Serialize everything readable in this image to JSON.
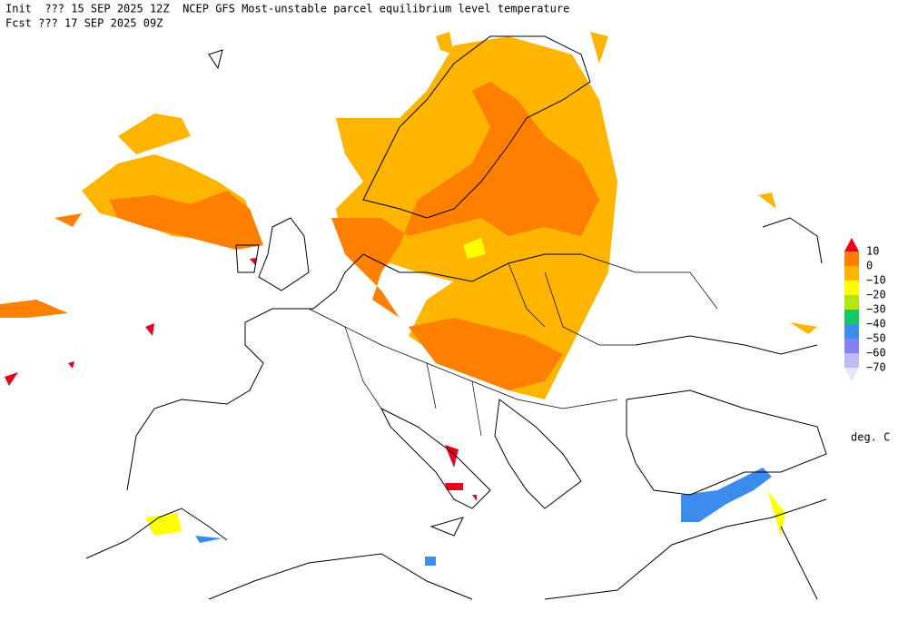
{
  "header": {
    "init": "Init  ??? 15 SEP 2025 12Z  NCEP GFS Most-unstable parcel equilibrium level temperature",
    "fcst": "Fcst ??? 17 SEP 2025 09Z"
  },
  "legend": {
    "labels": [
      "10",
      "0",
      "−10",
      "−20",
      "−30",
      "−40",
      "−50",
      "−60",
      "−70"
    ],
    "colors": [
      "#e8001c",
      "#ff7f00",
      "#ffb400",
      "#ffff00",
      "#b4e614",
      "#14c864",
      "#3c8cf0",
      "#8282f0",
      "#bcbcf5",
      "#e6e6fa"
    ],
    "unit": "deg. C"
  }
}
